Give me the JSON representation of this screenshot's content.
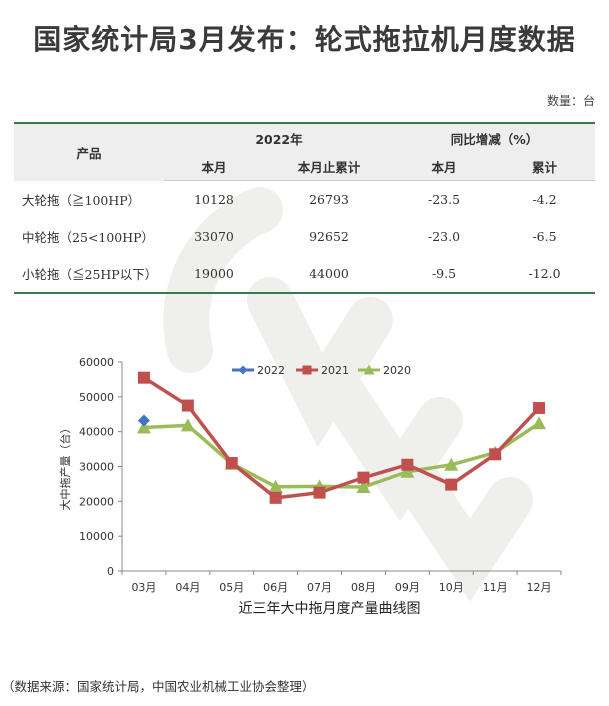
{
  "title": "国家统计局3月发布：轮式拖拉机月度数据",
  "unit_note": "数量：台",
  "table": {
    "header_product": "产品",
    "header_year": "2022年",
    "header_yoy": "同比增减（%）",
    "sub_headers": [
      "本月",
      "本月止累计",
      "本月",
      "累计"
    ],
    "rows": [
      {
        "product": "大轮拖（≧100HP）",
        "month": "10128",
        "cumulative": "26793",
        "yoy_month": "-23.5",
        "yoy_cumulative": "-4.2"
      },
      {
        "product": "中轮拖（25<100HP）",
        "month": "33070",
        "cumulative": "92652",
        "yoy_month": "-23.0",
        "yoy_cumulative": "-6.5"
      },
      {
        "product": "小轮拖（≦25HP以下）",
        "month": "19000",
        "cumulative": "44000",
        "yoy_month": "-9.5",
        "yoy_cumulative": "-12.0"
      }
    ]
  },
  "chart_data": {
    "type": "line",
    "title": "近三年大中拖月度产量曲线图",
    "xlabel": "",
    "ylabel": "大中拖产量（台）",
    "categories": [
      "03月",
      "04月",
      "05月",
      "06月",
      "07月",
      "08月",
      "09月",
      "10月",
      "11月",
      "12月"
    ],
    "ylim": [
      0,
      60000
    ],
    "yticks": [
      0,
      10000,
      20000,
      30000,
      40000,
      50000,
      60000
    ],
    "legend_position": "top",
    "grid": false,
    "series": [
      {
        "name": "2022",
        "color": "#4472C4",
        "marker": "diamond",
        "values": [
          43200,
          null,
          null,
          null,
          null,
          null,
          null,
          null,
          null,
          null
        ]
      },
      {
        "name": "2021",
        "color": "#C0504D",
        "marker": "square",
        "values": [
          55500,
          47500,
          31000,
          21000,
          22500,
          26800,
          30500,
          24800,
          33500,
          46800
        ]
      },
      {
        "name": "2020",
        "color": "#9BBB59",
        "marker": "triangle",
        "values": [
          41200,
          41800,
          30800,
          24200,
          24300,
          24100,
          28500,
          30500,
          34000,
          42400
        ]
      }
    ]
  },
  "source_note": "（数据来源：国家统计局，中国农业机械工业协会整理）"
}
